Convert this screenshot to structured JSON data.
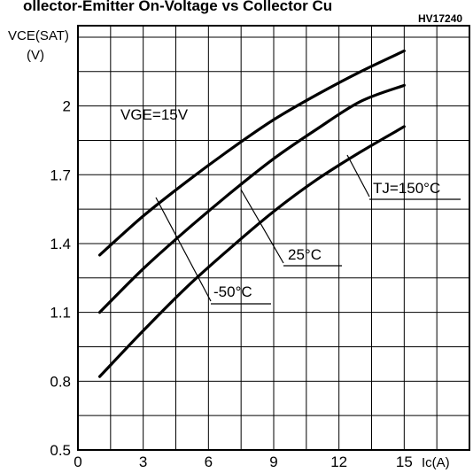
{
  "page": {
    "title": "ollector-Emitter On-Voltage vs Collector Cu",
    "figure_code": "HV17240"
  },
  "chart_data": {
    "type": "line",
    "title": "ollector-Emitter On-Voltage vs Collector Cu",
    "xlabel": "Ic(A)",
    "ylabel": "VCE(SAT) (V)",
    "ylabel_line1": "VCE(SAT)",
    "ylabel_line2": "(V)",
    "xlim": [
      0,
      18
    ],
    "ylim": [
      0.5,
      2.35
    ],
    "x_ticks": [
      0,
      3,
      6,
      9,
      12,
      15
    ],
    "x_tick_labels": [
      "0",
      "3",
      "6",
      "9",
      "12",
      "15"
    ],
    "y_ticks": [
      0.5,
      0.8,
      1.1,
      1.4,
      1.7,
      2
    ],
    "y_tick_labels": [
      "0.5",
      "0.8",
      "1.1",
      "1.4",
      "1.7",
      "2"
    ],
    "grid": true,
    "annotation_vge": "VGE=15V",
    "series": [
      {
        "name": "TJ=150°C",
        "label": "TJ=150°C",
        "x": [
          1,
          3,
          5,
          7,
          9,
          11,
          13,
          15
        ],
        "y": [
          1.35,
          1.52,
          1.67,
          1.81,
          1.94,
          2.05,
          2.15,
          2.24
        ]
      },
      {
        "name": "25°C",
        "label": "25°C",
        "x": [
          1,
          3,
          5,
          7,
          9,
          11,
          13,
          15
        ],
        "y": [
          1.1,
          1.29,
          1.46,
          1.62,
          1.77,
          1.9,
          2.02,
          2.09
        ]
      },
      {
        "name": "-50°C",
        "label": "-50°C",
        "x": [
          1,
          3,
          5,
          7,
          9,
          11,
          13,
          15
        ],
        "y": [
          0.82,
          1.02,
          1.21,
          1.38,
          1.54,
          1.68,
          1.8,
          1.91
        ]
      }
    ]
  }
}
